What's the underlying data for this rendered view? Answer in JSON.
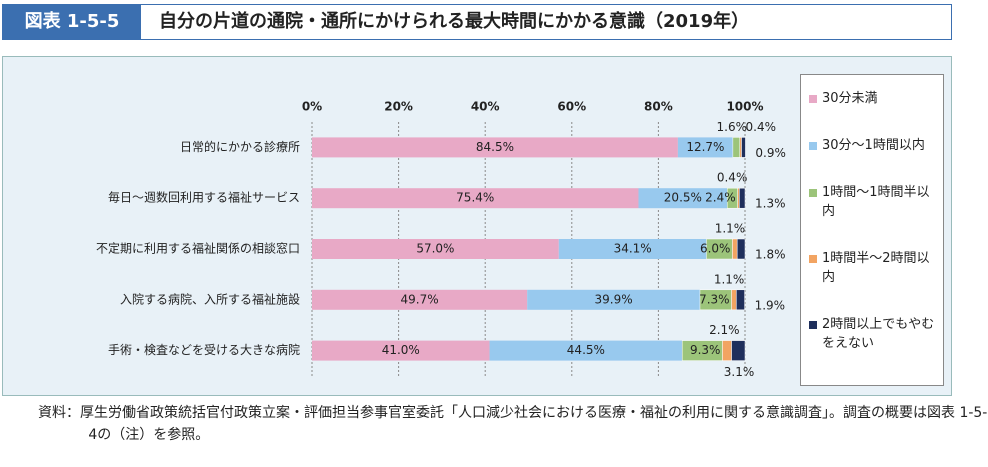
{
  "chart_data": {
    "type": "stacked-bar-horizontal",
    "figure_label": "図表 1-5-5",
    "title": "自分の片道の通院・通所にかけられる最大時間にかかる意識（2019年）",
    "categories": [
      "日常的にかかる診療所",
      "毎日～週数回利用する福祉サービス",
      "不定期に利用する福祉関係の相談窓口",
      "入院する病院、入所する福祉施設",
      "手術・検査などを受ける大きな病院"
    ],
    "series": [
      {
        "name": "30分未満",
        "color": "#e8a9c6",
        "values": [
          84.5,
          75.4,
          57.0,
          49.7,
          41.0
        ],
        "value_labels": [
          "84.5%",
          "75.4%",
          "57.0%",
          "49.7%",
          "41.0%"
        ]
      },
      {
        "name": "30分～1時間以内",
        "color": "#98c9ee",
        "values": [
          12.7,
          20.5,
          34.1,
          39.9,
          44.5
        ],
        "value_labels": [
          "12.7%",
          "20.5%",
          "34.1%",
          "39.9%",
          "44.5%"
        ]
      },
      {
        "name": "1時間～1時間半以内",
        "color": "#9cc47a",
        "values": [
          1.6,
          2.4,
          6.0,
          7.3,
          9.3
        ],
        "value_labels": [
          "1.6%",
          "2.4%",
          "6.0%",
          "7.3%",
          "9.3%"
        ]
      },
      {
        "name": "1時間半～2時間以内",
        "color": "#f2a462",
        "values": [
          0.4,
          0.4,
          1.1,
          1.1,
          2.1
        ],
        "value_labels": [
          "0.4%",
          "0.4%",
          "1.1%",
          "1.1%",
          "2.1%"
        ]
      },
      {
        "name": "2時間以上でもやむをえない",
        "color": "#1f2f5c",
        "values": [
          0.9,
          1.3,
          1.8,
          1.9,
          3.1
        ],
        "value_labels": [
          "0.9%",
          "1.3%",
          "1.8%",
          "1.9%",
          "3.1%"
        ]
      }
    ],
    "xlim": [
      0,
      100
    ],
    "xticks": [
      {
        "value": 0,
        "label": "0%"
      },
      {
        "value": 20,
        "label": "20%"
      },
      {
        "value": 40,
        "label": "40%"
      },
      {
        "value": 60,
        "label": "60%"
      },
      {
        "value": 80,
        "label": "80%"
      },
      {
        "value": 100,
        "label": "100%"
      }
    ],
    "grid": true,
    "legend": "right",
    "note": "資料：厚生労働省政策統括官付政策立案・評価担当参事官室委託「人口減少社会における医療・福祉の利用に関する意識調査」。調査の概要は図表 1-5-4の（注）を参照。"
  }
}
